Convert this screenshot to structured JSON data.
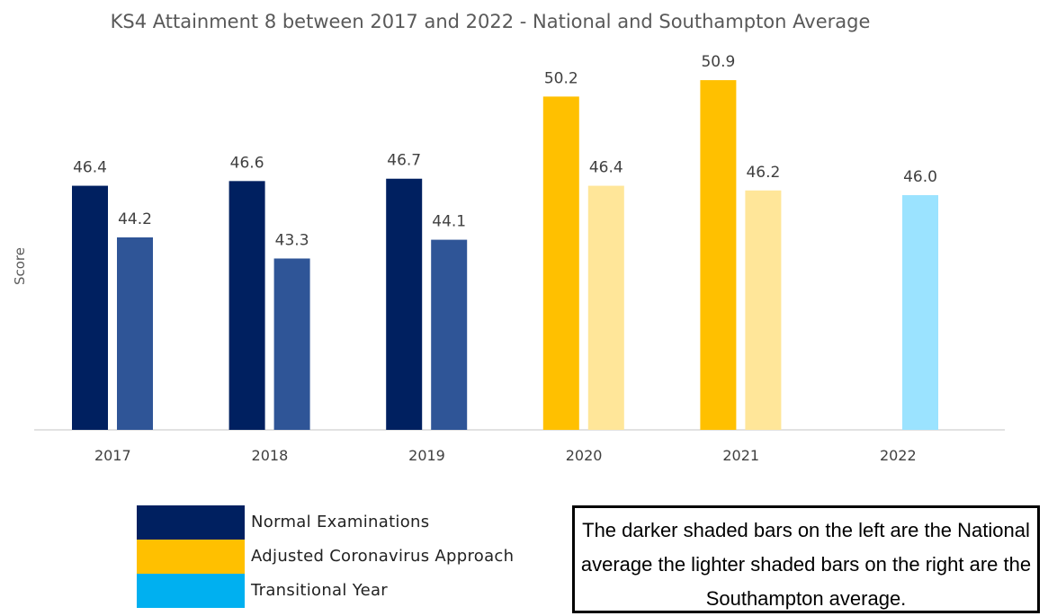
{
  "chart_data": {
    "type": "bar",
    "title": "KS4 Attainment 8 between 2017 and 2022 - National and Southampton Average",
    "ylabel": "Score",
    "xlabel": "",
    "categories": [
      "2017",
      "2018",
      "2019",
      "2020",
      "2021",
      "2022"
    ],
    "series": [
      {
        "values": [
          46.4,
          46.6,
          46.7,
          50.2,
          50.9,
          null
        ],
        "colors": [
          "#002060",
          "#002060",
          "#002060",
          "#FFC000",
          "#FFC000",
          null
        ]
      },
      {
        "values": [
          44.2,
          43.3,
          44.1,
          46.4,
          46.2,
          46.0
        ],
        "colors": [
          "#2F5597",
          "#2F5597",
          "#2F5597",
          "#FFE699",
          "#FFE699",
          "#9BE3FF"
        ]
      }
    ],
    "data_labels": [
      [
        "46.4",
        "46.6",
        "46.7",
        "50.2",
        "50.9",
        null
      ],
      [
        "44.2",
        "43.3",
        "44.1",
        "46.4",
        "46.2",
        "46.0"
      ]
    ],
    "grid": false,
    "legend_position": "bottom-left",
    "legend": [
      {
        "label": "Normal Examinations",
        "color": "#002060"
      },
      {
        "label": "Adjusted Coronavirus Approach",
        "color": "#FFC000"
      },
      {
        "label": "Transitional Year",
        "color": "#00B0F0"
      }
    ]
  },
  "note": "The darker shaded bars on the left are the National average the lighter shaded bars on the right are the Southampton average.",
  "colors": {
    "axis": "#D9D9D9",
    "text": "#404040"
  }
}
